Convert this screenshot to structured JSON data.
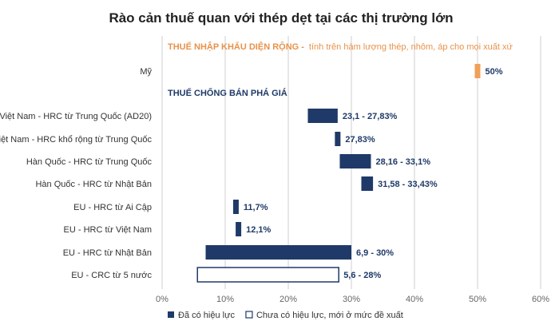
{
  "chart_data": {
    "type": "bar",
    "orientation": "horizontal-range",
    "title": "Rào cản thuế quan với thép dẹt tại các thị trường lớn",
    "sections": [
      {
        "title": "THUẾ NHẬP KHẨU DIỆN RỘNG -",
        "subtitle": "tính trên hàm lượng thép, nhôm,  áp cho mọi xuất xứ",
        "color": "#e8924a"
      },
      {
        "title": "THUẾ CHỐNG BÁN PHÁ GIÁ",
        "subtitle": "",
        "color": "#1f3a68"
      }
    ],
    "categories": [
      "Mỹ",
      "Việt Nam - HRC từ Trung Quốc (AD20)",
      "Việt Nam - HRC khổ rộng từ Trung Quốc",
      "Hàn Quốc - HRC từ Trung Quốc",
      "Hàn Quốc - HRC từ Nhật Bản",
      "EU - HRC từ Ai Cập",
      "EU - HRC từ Việt Nam",
      "EU - HRC từ Nhật Bản",
      "EU - CRC từ 5 nước"
    ],
    "bars": [
      {
        "category": "Mỹ",
        "low": 50,
        "high": 50,
        "label": "50%",
        "status": "broad",
        "color": "#f0a05a"
      },
      {
        "category": "Việt Nam - HRC từ Trung Quốc (AD20)",
        "low": 23.1,
        "high": 27.83,
        "label": "23,1 - 27,83%",
        "status": "effective",
        "color": "#1f3a68"
      },
      {
        "category": "Việt Nam - HRC khổ rộng từ Trung Quốc",
        "low": 27.83,
        "high": 27.83,
        "label": "27,83%",
        "status": "effective",
        "color": "#1f3a68"
      },
      {
        "category": "Hàn Quốc - HRC từ Trung Quốc",
        "low": 28.16,
        "high": 33.1,
        "label": "28,16 - 33,1%",
        "status": "effective",
        "color": "#1f3a68"
      },
      {
        "category": "Hàn Quốc - HRC từ Nhật Bản",
        "low": 31.58,
        "high": 33.43,
        "label": "31,58 - 33,43%",
        "status": "effective",
        "color": "#1f3a68"
      },
      {
        "category": "EU - HRC từ Ai Cập",
        "low": 11.7,
        "high": 11.7,
        "label": "11,7%",
        "status": "effective",
        "color": "#1f3a68"
      },
      {
        "category": "EU - HRC từ Việt Nam",
        "low": 12.1,
        "high": 12.1,
        "label": "12,1%",
        "status": "effective",
        "color": "#1f3a68"
      },
      {
        "category": "EU - HRC từ Nhật Bản",
        "low": 6.9,
        "high": 30,
        "label": "6,9 - 30%",
        "status": "effective",
        "color": "#1f3a68"
      },
      {
        "category": "EU - CRC từ 5 nước",
        "low": 5.6,
        "high": 28,
        "label": "5,6 - 28%",
        "status": "proposed",
        "color": "#1f3a68"
      }
    ],
    "xlim": [
      0,
      60
    ],
    "xticks": [
      0,
      10,
      20,
      30,
      40,
      50,
      60
    ],
    "xtick_labels": [
      "0%",
      "10%",
      "20%",
      "30%",
      "40%",
      "50%",
      "60%"
    ],
    "grid": true,
    "xlabel": "",
    "ylabel": "",
    "legend": {
      "placement": "bottom",
      "entries": [
        {
          "label": "Đã có hiệu lực",
          "style": "filled",
          "color": "#1f3a68"
        },
        {
          "label": "Chưa có hiệu lực, mới ở mức đề xuất",
          "style": "outline",
          "color": "#1f3a68"
        }
      ]
    }
  }
}
